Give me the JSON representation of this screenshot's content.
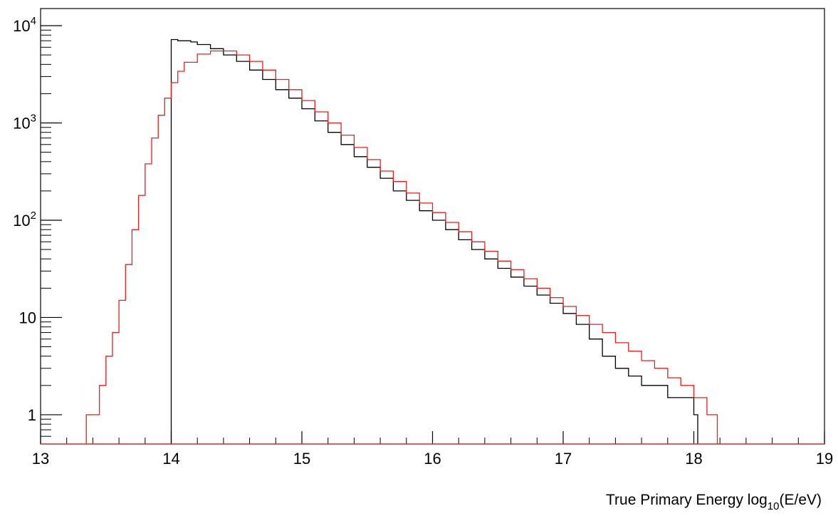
{
  "chart_data": {
    "type": "histogram",
    "title": "",
    "xlabel_main": "True Primary Energy log",
    "xlabel_sub": "10",
    "xlabel_tail": "(E/eV)",
    "ylabel": "",
    "yscale": "log",
    "xlim": [
      13,
      19
    ],
    "ylim": [
      0.5,
      15000
    ],
    "grid": false,
    "legend": "none",
    "x_ticks": [
      {
        "v": 13,
        "label": "13"
      },
      {
        "v": 14,
        "label": "14"
      },
      {
        "v": 15,
        "label": "15"
      },
      {
        "v": 16,
        "label": "16"
      },
      {
        "v": 17,
        "label": "17"
      },
      {
        "v": 18,
        "label": "18"
      },
      {
        "v": 19,
        "label": "19"
      }
    ],
    "y_ticks": [
      {
        "v": 1,
        "base": "1",
        "exp": ""
      },
      {
        "v": 10,
        "base": "10",
        "exp": ""
      },
      {
        "v": 100,
        "base": "10",
        "exp": "2"
      },
      {
        "v": 1000,
        "base": "10",
        "exp": "3"
      },
      {
        "v": 10000,
        "base": "10",
        "exp": "4"
      }
    ],
    "series": [
      {
        "color": "#000000",
        "points": [
          [
            14.0,
            7200
          ],
          [
            14.05,
            7000
          ],
          [
            14.1,
            7000
          ],
          [
            14.15,
            6800
          ],
          [
            14.2,
            6400
          ],
          [
            14.3,
            5800
          ],
          [
            14.4,
            5000
          ],
          [
            14.5,
            4300
          ],
          [
            14.6,
            3500
          ],
          [
            14.7,
            2800
          ],
          [
            14.8,
            2200
          ],
          [
            14.9,
            1800
          ],
          [
            15.0,
            1400
          ],
          [
            15.1,
            1050
          ],
          [
            15.2,
            800
          ],
          [
            15.3,
            600
          ],
          [
            15.4,
            450
          ],
          [
            15.5,
            350
          ],
          [
            15.6,
            270
          ],
          [
            15.7,
            200
          ],
          [
            15.8,
            160
          ],
          [
            15.9,
            125
          ],
          [
            16.0,
            100
          ],
          [
            16.1,
            80
          ],
          [
            16.2,
            63
          ],
          [
            16.3,
            50
          ],
          [
            16.4,
            40
          ],
          [
            16.5,
            32
          ],
          [
            16.6,
            26
          ],
          [
            16.7,
            21
          ],
          [
            16.8,
            17
          ],
          [
            16.9,
            14
          ],
          [
            17.0,
            11
          ],
          [
            17.1,
            8.5
          ],
          [
            17.2,
            6
          ],
          [
            17.3,
            4
          ],
          [
            17.4,
            3
          ],
          [
            17.5,
            2.5
          ],
          [
            17.6,
            2
          ],
          [
            17.7,
            2
          ],
          [
            17.8,
            1.5
          ],
          [
            17.9,
            1.5
          ],
          [
            18.0,
            1
          ]
        ]
      },
      {
        "color": "#ee1c1c",
        "points": [
          [
            13.35,
            1
          ],
          [
            13.45,
            2
          ],
          [
            13.5,
            4
          ],
          [
            13.55,
            7
          ],
          [
            13.6,
            15
          ],
          [
            13.65,
            35
          ],
          [
            13.7,
            80
          ],
          [
            13.75,
            180
          ],
          [
            13.8,
            380
          ],
          [
            13.85,
            700
          ],
          [
            13.9,
            1200
          ],
          [
            13.95,
            1800
          ],
          [
            14.0,
            2600
          ],
          [
            14.05,
            3400
          ],
          [
            14.1,
            4200
          ],
          [
            14.2,
            5100
          ],
          [
            14.3,
            5500
          ],
          [
            14.4,
            5500
          ],
          [
            14.5,
            5000
          ],
          [
            14.6,
            4300
          ],
          [
            14.7,
            3500
          ],
          [
            14.8,
            2800
          ],
          [
            14.9,
            2200
          ],
          [
            15.0,
            1700
          ],
          [
            15.1,
            1300
          ],
          [
            15.2,
            1000
          ],
          [
            15.3,
            750
          ],
          [
            15.4,
            560
          ],
          [
            15.5,
            420
          ],
          [
            15.6,
            320
          ],
          [
            15.7,
            250
          ],
          [
            15.8,
            190
          ],
          [
            15.9,
            150
          ],
          [
            16.0,
            120
          ],
          [
            16.1,
            95
          ],
          [
            16.2,
            76
          ],
          [
            16.3,
            60
          ],
          [
            16.4,
            48
          ],
          [
            16.5,
            38
          ],
          [
            16.6,
            31
          ],
          [
            16.7,
            25
          ],
          [
            16.8,
            20
          ],
          [
            16.9,
            16
          ],
          [
            17.0,
            13
          ],
          [
            17.1,
            10.5
          ],
          [
            17.2,
            8.5
          ],
          [
            17.3,
            7
          ],
          [
            17.4,
            5.5
          ],
          [
            17.5,
            4.5
          ],
          [
            17.6,
            3.6
          ],
          [
            17.7,
            3
          ],
          [
            17.8,
            2.4
          ],
          [
            17.9,
            2
          ],
          [
            18.0,
            1.5
          ],
          [
            18.1,
            1
          ],
          [
            18.15,
            1
          ]
        ]
      }
    ]
  }
}
